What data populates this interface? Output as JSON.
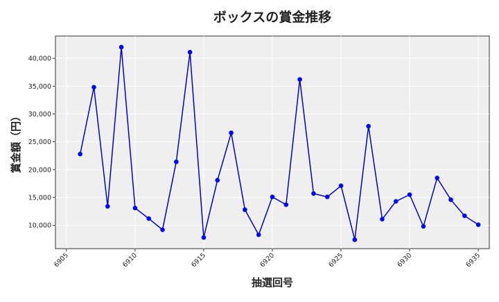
{
  "chart_data": {
    "type": "line",
    "title": "ボックスの賞金推移",
    "xlabel": "抽選回号",
    "ylabel": "賞金額（円）",
    "xlim": [
      6904.2,
      6935.8
    ],
    "ylim": [
      5800,
      44000
    ],
    "x_ticks": [
      6905,
      6910,
      6915,
      6920,
      6925,
      6930,
      6935
    ],
    "y_ticks": [
      10000,
      15000,
      20000,
      25000,
      30000,
      35000,
      40000
    ],
    "y_tick_labels": [
      "10,000",
      "15,000",
      "20,000",
      "25,000",
      "30,000",
      "35,000",
      "40,000"
    ],
    "grid": true,
    "line_color": "#0000cc",
    "marker_color": "#0000ff",
    "plot_background": "#efefef",
    "series": [
      {
        "x": [
          6906,
          6907,
          6908,
          6909,
          6910,
          6911,
          6912,
          6913,
          6914,
          6915,
          6916,
          6917,
          6918,
          6919,
          6920,
          6921,
          6922,
          6923,
          6924,
          6925,
          6926,
          6927,
          6928,
          6929,
          6930,
          6931,
          6932,
          6933,
          6934,
          6935
        ],
        "y": [
          22800,
          34800,
          13400,
          42000,
          13100,
          11200,
          9200,
          21400,
          41100,
          7800,
          18100,
          26600,
          12800,
          8300,
          15100,
          13700,
          36200,
          15700,
          15100,
          17100,
          7400,
          27800,
          11100,
          14300,
          15500,
          9800,
          18500,
          14600,
          11700,
          10100
        ]
      }
    ]
  }
}
